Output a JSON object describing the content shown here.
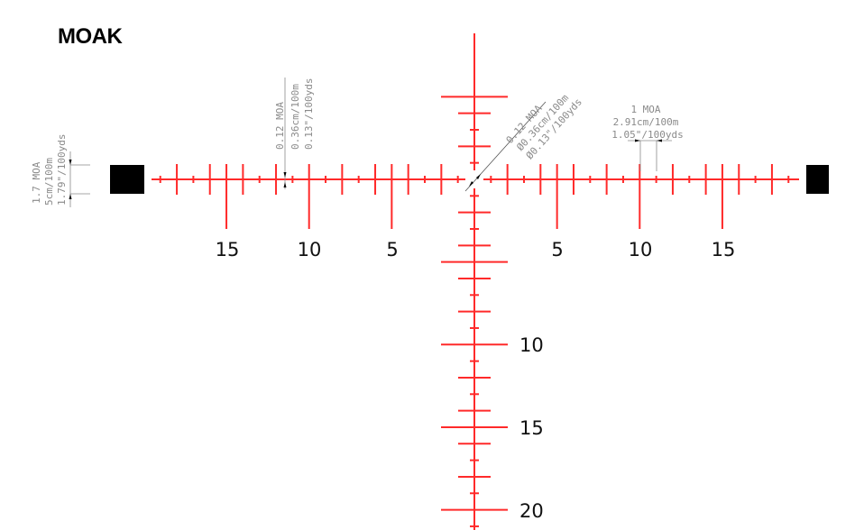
{
  "title": "MOAK",
  "colors": {
    "reticle": "#ff2a2a",
    "posts": "#000000",
    "annotation": "#8a8a8a"
  },
  "horizontal_labels": {
    "left": [
      "15",
      "10",
      "5"
    ],
    "right": [
      "5",
      "10",
      "15"
    ]
  },
  "vertical_labels": [
    "10",
    "15",
    "20"
  ],
  "annotations": {
    "post_height": [
      "1.7 MOA",
      "5cm/100m",
      "1.79\"/100yds"
    ],
    "tick_thickness": [
      "0.12 MOA",
      "0.36cm/100m",
      "0.13\"/100yds"
    ],
    "center_dot": [
      "0.12 MOA",
      "Ø0.36cm/100m",
      "Ø0.13\"/100yds"
    ],
    "tick_spacing": [
      "1 MOA",
      "2.91cm/100m",
      "1.05\"/100yds"
    ]
  }
}
